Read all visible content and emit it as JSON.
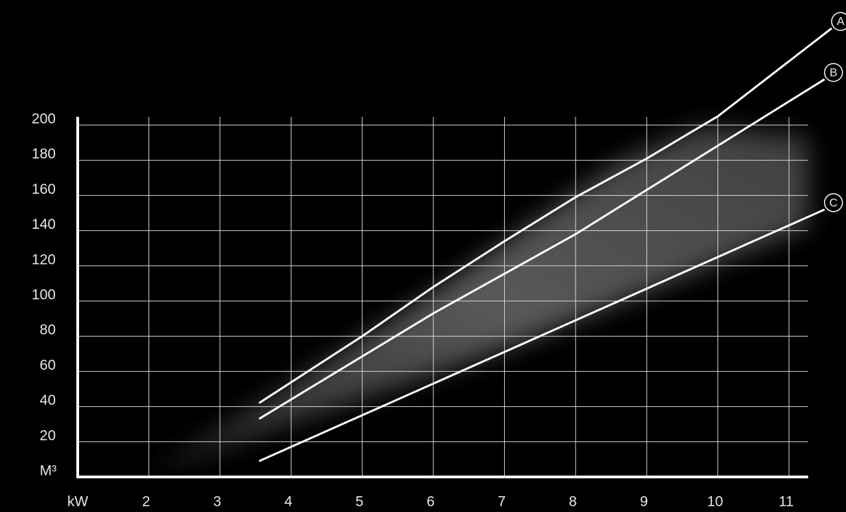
{
  "chart_data": {
    "type": "line",
    "x_label": "kW",
    "y_label": "M³",
    "xlim": [
      1,
      11.27
    ],
    "ylim": [
      0,
      200
    ],
    "xticks": [
      2,
      3,
      4,
      5,
      6,
      7,
      8,
      9,
      10,
      11
    ],
    "yticks": [
      20,
      40,
      60,
      80,
      100,
      120,
      140,
      160,
      180,
      200
    ],
    "grid": true,
    "series": [
      {
        "name": "A",
        "color": "#ffffff",
        "x": [
          3.55,
          5,
          6,
          7,
          8,
          9,
          10,
          11.6
        ],
        "values": [
          42,
          80,
          108,
          134,
          159,
          181,
          205,
          255
        ]
      },
      {
        "name": "B",
        "color": "#ffffff",
        "x": [
          3.55,
          6,
          8,
          11.5
        ],
        "values": [
          33,
          93,
          138,
          226
        ]
      },
      {
        "name": "C",
        "color": "#ffffff",
        "x": [
          3.55,
          11.5
        ],
        "values": [
          9,
          152
        ]
      }
    ]
  }
}
